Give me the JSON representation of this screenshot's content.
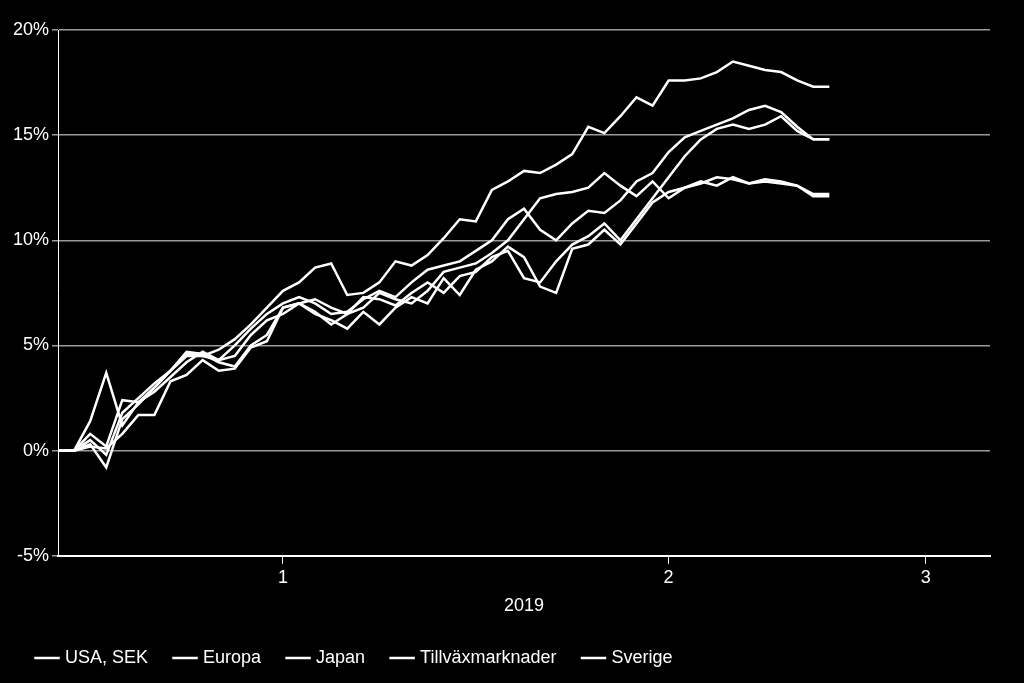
{
  "chart_data": {
    "type": "line",
    "x_label": "2019",
    "categories": [
      null,
      null,
      null,
      null,
      null,
      null,
      null,
      null,
      null,
      null,
      null,
      null,
      null,
      null,
      "1",
      null,
      null,
      null,
      null,
      null,
      null,
      null,
      null,
      null,
      null,
      null,
      null,
      null,
      null,
      null,
      null,
      null,
      null,
      null,
      null,
      null,
      null,
      null,
      "2",
      null,
      null,
      null,
      null,
      null,
      null,
      null,
      null,
      null,
      null,
      null,
      null,
      null,
      null,
      null,
      "3",
      null,
      null,
      null,
      null
    ],
    "ylim": [
      -5,
      20
    ],
    "yticks": [
      {
        "value": -5,
        "label": "-5%"
      },
      {
        "value": 0,
        "label": "0%"
      },
      {
        "value": 5,
        "label": "5%"
      },
      {
        "value": 10,
        "label": "10%"
      },
      {
        "value": 15,
        "label": "15%"
      },
      {
        "value": 20,
        "label": "20%"
      }
    ],
    "grid": true,
    "legend": "bottom",
    "series": [
      {
        "name": "USA, SEK",
        "color": "#ffffff",
        "values": [
          0,
          0,
          0.5,
          -0.2,
          1.8,
          2.5,
          3.2,
          3.8,
          4.5,
          4.5,
          4.8,
          5.3,
          6.0,
          6.8,
          7.6,
          8.0,
          8.7,
          8.9,
          7.4,
          7.5,
          8.0,
          9.0,
          8.8,
          9.3,
          10.1,
          11.0,
          10.9,
          12.4,
          12.8,
          13.3,
          13.2,
          13.6,
          14.1,
          15.4,
          15.1,
          15.9,
          16.8,
          16.4,
          17.6,
          17.6,
          17.7,
          18.0,
          18.5,
          18.3,
          18.1,
          18.0,
          17.6,
          17.3,
          17.3,
          null,
          null,
          null,
          null,
          null,
          null,
          null,
          null,
          null,
          null
        ]
      },
      {
        "name": "Europa",
        "color": "#ffffff",
        "values": [
          0,
          0,
          1.4,
          3.7,
          1.2,
          2.3,
          3.0,
          3.8,
          4.6,
          4.5,
          4.3,
          5.0,
          5.8,
          6.5,
          7.0,
          7.3,
          7.0,
          6.5,
          6.6,
          7.2,
          7.6,
          7.3,
          8.0,
          8.6,
          8.8,
          9.0,
          9.5,
          10.0,
          11.0,
          11.5,
          10.5,
          10.0,
          10.8,
          11.4,
          11.3,
          11.9,
          12.8,
          13.2,
          14.2,
          14.9,
          15.2,
          15.5,
          15.8,
          16.2,
          16.4,
          16.1,
          15.4,
          14.8,
          14.8,
          null,
          null,
          null,
          null,
          null,
          null,
          null,
          null,
          null,
          null
        ]
      },
      {
        "name": "Japan",
        "color": "#ffffff",
        "values": [
          0,
          0,
          0.3,
          -0.8,
          1.5,
          2.2,
          3.0,
          3.8,
          4.7,
          4.6,
          4.2,
          4.0,
          5.0,
          5.5,
          6.8,
          7.0,
          6.6,
          6.0,
          6.5,
          7.3,
          7.2,
          6.9,
          7.5,
          8.0,
          7.5,
          8.3,
          8.5,
          9.2,
          9.5,
          8.2,
          8.0,
          9.0,
          9.8,
          10.2,
          10.8,
          10.0,
          11.0,
          12.0,
          13.0,
          14.0,
          14.8,
          15.3,
          15.5,
          15.3,
          15.5,
          15.9,
          15.2,
          14.8,
          14.8,
          null,
          null,
          null,
          null,
          null,
          null,
          null,
          null,
          null,
          null
        ]
      },
      {
        "name": "Tillväxmarknader",
        "color": "#ffffff",
        "values": [
          0,
          0,
          0.8,
          0.2,
          2.4,
          2.3,
          2.8,
          3.5,
          4.2,
          4.7,
          4.3,
          4.5,
          5.5,
          6.2,
          6.5,
          7.0,
          7.2,
          6.8,
          6.5,
          6.8,
          7.5,
          7.2,
          7.0,
          7.6,
          8.5,
          8.7,
          8.9,
          9.4,
          10.0,
          11.0,
          12.0,
          12.2,
          12.3,
          12.5,
          13.2,
          12.6,
          12.1,
          12.8,
          12.0,
          12.5,
          12.8,
          12.6,
          13.0,
          12.7,
          12.9,
          12.8,
          12.6,
          12.2,
          12.2,
          null,
          null,
          null,
          null,
          null,
          null,
          null,
          null,
          null,
          null
        ]
      },
      {
        "name": "Sverige",
        "color": "#ffffff",
        "values": [
          0,
          0,
          0.2,
          0.1,
          0.8,
          1.7,
          1.7,
          3.3,
          3.6,
          4.3,
          3.8,
          3.9,
          4.9,
          5.2,
          6.8,
          7.0,
          6.5,
          6.2,
          5.8,
          6.6,
          6.0,
          6.8,
          7.3,
          7.0,
          8.2,
          7.4,
          8.6,
          9.0,
          9.7,
          9.2,
          7.8,
          7.5,
          9.6,
          9.8,
          10.5,
          9.8,
          10.8,
          11.8,
          12.3,
          12.5,
          12.7,
          13.0,
          12.9,
          12.7,
          12.8,
          12.7,
          12.6,
          12.1,
          12.1,
          null,
          null,
          null,
          null,
          null,
          null,
          null,
          null,
          null,
          null
        ]
      }
    ]
  }
}
